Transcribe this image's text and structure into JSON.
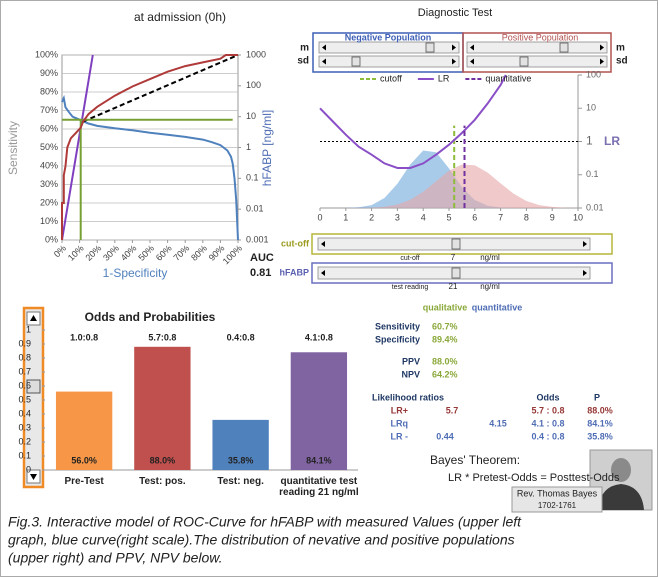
{
  "chart_data": [
    {
      "type": "line",
      "title": "at admission (0h)",
      "xlabel": "1-Specificity",
      "ylabel": "Sensitivity",
      "y2label": "hFABP [ng/ml]",
      "xlim": [
        0,
        100
      ],
      "ylim": [
        0,
        100
      ],
      "y2lim": [
        0.001,
        1000
      ],
      "y2scale": "log",
      "grid": true,
      "xticks": [
        {
          "value": 0,
          "label": "0%"
        },
        {
          "value": 10,
          "label": "10%"
        },
        {
          "value": 20,
          "label": "20%"
        },
        {
          "value": 30,
          "label": "30%"
        },
        {
          "value": 40,
          "label": "40%"
        },
        {
          "value": 50,
          "label": "50%"
        },
        {
          "value": 60,
          "label": "60%"
        },
        {
          "value": 70,
          "label": "70%"
        },
        {
          "value": 80,
          "label": "80%"
        },
        {
          "value": 90,
          "label": "90%"
        },
        {
          "value": 100,
          "label": "100%"
        }
      ],
      "yticks": [
        {
          "value": 0,
          "label": "0%"
        },
        {
          "value": 10,
          "label": "10%"
        },
        {
          "value": 20,
          "label": "20%"
        },
        {
          "value": 30,
          "label": "30%"
        },
        {
          "value": 40,
          "label": "40%"
        },
        {
          "value": 50,
          "label": "50%"
        },
        {
          "value": 60,
          "label": "60%"
        },
        {
          "value": 70,
          "label": "70%"
        },
        {
          "value": 80,
          "label": "80%"
        },
        {
          "value": 90,
          "label": "90%"
        },
        {
          "value": 100,
          "label": "100%"
        }
      ],
      "y2ticks": [
        1000,
        100,
        10,
        1,
        0.1,
        0.01,
        0.001
      ],
      "auc_label": "AUC",
      "auc": 0.81,
      "series": [
        {
          "color": "#4f81bd",
          "axis": "y2",
          "x": [
            0,
            1,
            2,
            4,
            6,
            10,
            15,
            20,
            30,
            40,
            50,
            60,
            70,
            80,
            85,
            90,
            94,
            96,
            97,
            98,
            99,
            100
          ],
          "values": [
            30,
            40,
            20,
            14,
            10,
            8,
            6,
            5,
            4.2,
            3.6,
            3,
            2.6,
            2.2,
            1.8,
            1.5,
            1.2,
            0.8,
            0.5,
            0.3,
            0.1,
            0.02,
            0.001
          ]
        },
        {
          "color": "#000000",
          "dash": true,
          "x": [
            12,
            100
          ],
          "values": [
            64,
            100
          ]
        },
        {
          "color": "#7f3fbf",
          "x": [
            0,
            17.5
          ],
          "values": [
            0,
            100
          ]
        },
        {
          "color": "#77a033",
          "x": [
            0,
            97,
            10.6,
            10.6,
            10.6
          ],
          "values": [
            65,
            65,
            null,
            0,
            65
          ]
        },
        {
          "color": "#b03a3a",
          "x": [
            0,
            0,
            1,
            1,
            2,
            3,
            5,
            8,
            10.6,
            12,
            15,
            20,
            30,
            40,
            50,
            60,
            70,
            80,
            90,
            93,
            100
          ],
          "values": [
            0,
            20,
            20,
            35,
            40,
            50,
            55,
            58,
            60.7,
            64,
            68,
            72,
            78,
            83,
            87,
            91,
            94,
            96,
            98,
            100,
            100
          ]
        }
      ]
    },
    {
      "type": "line",
      "title": "Diagnostic Test",
      "ylabel": "LR",
      "populations": [
        "Negative Population",
        "Positive Population"
      ],
      "parameters": [
        "m",
        "sd"
      ],
      "xlim": [
        0,
        10
      ],
      "xticks": [
        0,
        1,
        2,
        3,
        4,
        5,
        6,
        7,
        8,
        9,
        10
      ],
      "ylim": [
        0.01,
        100
      ],
      "yscale": "log",
      "yticks": [
        100,
        10,
        1,
        0.1,
        0.01
      ],
      "reference_line": 1,
      "y2lim": [
        0,
        1
      ],
      "series": [
        {
          "color": "#6fa8dc",
          "axis": "y2",
          "area": true,
          "x": [
            1,
            1.5,
            2,
            2.5,
            3,
            3.5,
            4,
            4.5,
            5,
            5.5,
            6,
            6.5,
            7,
            7.5,
            8,
            8.5,
            9,
            9.5,
            10
          ],
          "values": [
            0.001,
            0.005,
            0.022,
            0.075,
            0.182,
            0.328,
            0.432,
            0.419,
            0.298,
            0.157,
            0.06,
            0.017,
            0.004,
            0.001,
            0,
            0,
            0,
            0,
            0
          ]
        },
        {
          "color": "#e6a6a6",
          "axis": "y2",
          "area": true,
          "x": [
            1,
            1.5,
            2,
            2.5,
            3,
            3.5,
            4,
            4.5,
            5,
            5.5,
            6,
            6.5,
            7,
            7.5,
            8,
            8.5,
            9,
            9.5,
            10
          ],
          "values": [
            0,
            0.001,
            0.003,
            0.009,
            0.026,
            0.062,
            0.122,
            0.201,
            0.281,
            0.327,
            0.322,
            0.266,
            0.185,
            0.108,
            0.053,
            0.022,
            0.008,
            0.002,
            0.001
          ]
        },
        {
          "name": "cutoff",
          "color": "#8dbb3a",
          "dash": true,
          "x": [
            5.2,
            5.2
          ],
          "values": [
            0.01,
            3
          ]
        },
        {
          "name": "LR",
          "color": "#8a4fc7",
          "x": [
            0,
            0.5,
            1,
            1.5,
            2,
            2.5,
            3,
            3.5,
            4,
            4.5,
            5,
            5.5,
            6,
            6.5,
            7,
            7.2
          ],
          "values": [
            10,
            4,
            1.6,
            0.7,
            0.4,
            0.22,
            0.16,
            0.16,
            0.22,
            0.4,
            0.8,
            1.8,
            4.5,
            14,
            50,
            100
          ]
        },
        {
          "name": "quantitative",
          "color": "#7030a0",
          "dash": true,
          "x": [
            5.6,
            5.6
          ],
          "values": [
            0.01,
            3
          ]
        }
      ]
    },
    {
      "type": "bar",
      "title": "Odds and Probabilities",
      "categories": [
        "Pre-Test",
        "Test: pos.",
        "Test: neg.",
        "quantitative test reading 21 ng/ml"
      ],
      "values": [
        0.56,
        0.88,
        0.358,
        0.841
      ],
      "value_labels": [
        "56.0%",
        "88.0%",
        "35.8%",
        "84.1%"
      ],
      "annotations": [
        "1.0:0.8",
        "5.7:0.8",
        "0.4:0.8",
        "4.1:0.8"
      ],
      "colors": [
        "#f79646",
        "#c0504d",
        "#4f81bd",
        "#8064a2"
      ],
      "ylim": [
        0,
        1
      ],
      "yticks": [
        0,
        0.1,
        0.2,
        0.3,
        0.4,
        0.5,
        0.6,
        0.7,
        0.8,
        0.9,
        1
      ]
    }
  ],
  "sliders": [
    {
      "label": "cut-off",
      "caption": "cut-off",
      "value": 7,
      "unit": "ng/ml"
    },
    {
      "label": "hFABP",
      "caption": "test reading",
      "value": 21,
      "unit": "ng/ml"
    }
  ],
  "results": {
    "headers": [
      "qualitative",
      "quantitative"
    ],
    "measures": [
      [
        "Sensitivity",
        "60.7%"
      ],
      [
        "Specificity",
        "89.4%"
      ],
      [
        "PPV",
        "88.0%"
      ],
      [
        "NPV",
        "64.2%"
      ]
    ],
    "lr_title": "Likelihood ratios",
    "lr_headers": [
      "Odds",
      "P"
    ],
    "lr_rows": [
      {
        "label": "LR+",
        "qualitative": "5.7",
        "odds": "5.7 : 0.8",
        "p": "88.0%"
      },
      {
        "label": "LRq",
        "quantitative": "4.15",
        "odds": "4.1 : 0.8",
        "p": "84.1%"
      },
      {
        "label": "LR -",
        "qualitative": "0.44",
        "odds": "0.4 : 0.8",
        "p": "35.8%"
      }
    ]
  },
  "bayes": {
    "title": "Bayes' Theorem:",
    "formula": "LR * Pretest-Odds = Posttest-Odds",
    "name": "Rev. Thomas Bayes",
    "years": "1702-1761"
  },
  "caption": [
    "Fig.3. Interactive model of ROC-Curve for hFABP with measured Values (upper left",
    "graph, blue curve(right scale).The distribution of nevative and positive populations",
    "(upper right) and PPV, NPV below."
  ]
}
